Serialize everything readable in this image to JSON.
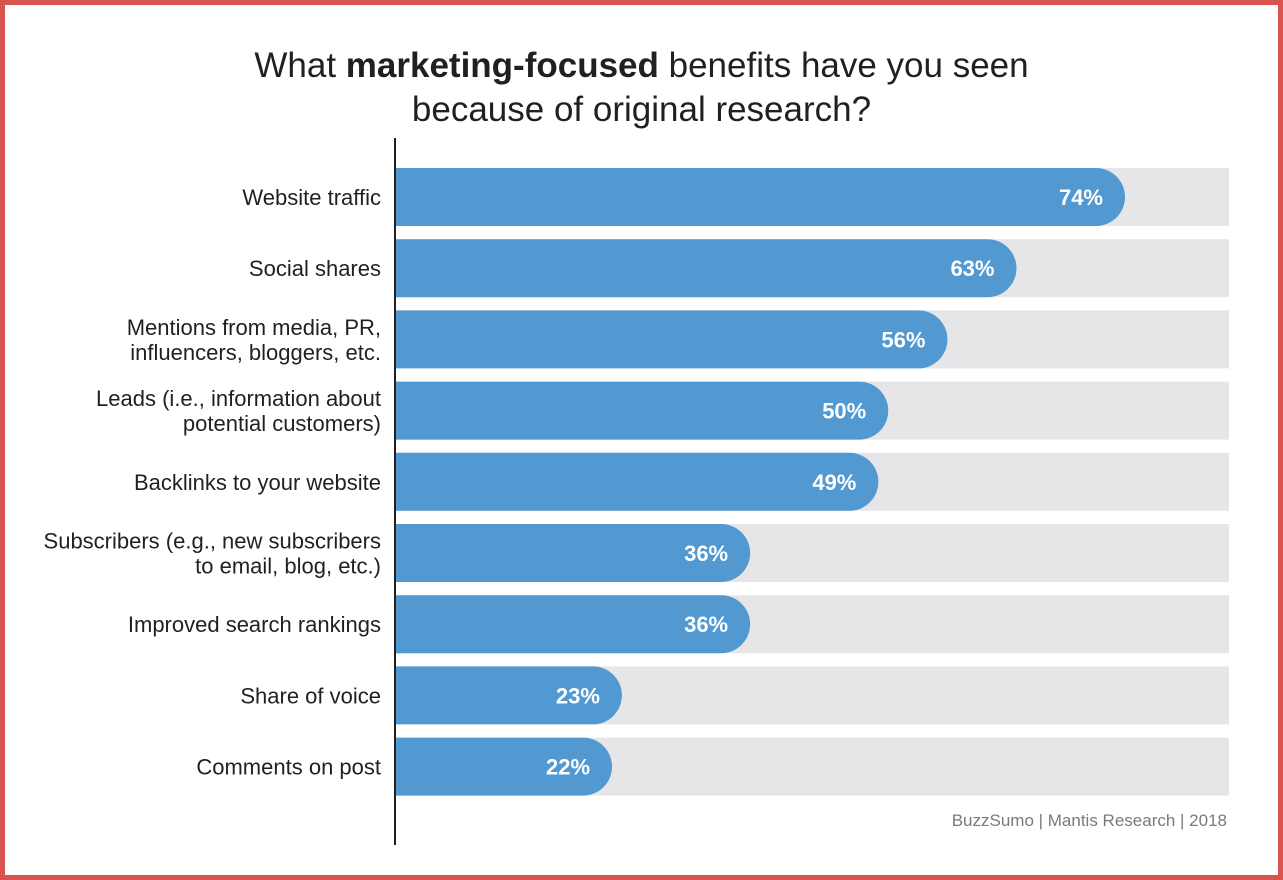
{
  "title": {
    "prefix": "What ",
    "bold": "marketing-focused",
    "suffix": " benefits have you seen",
    "line2": "because of original research?"
  },
  "source": "BuzzSumo | Mantis Research | 2018",
  "colors": {
    "bar": "#5299d1",
    "track": "#e6e6e8",
    "axis": "#231f20",
    "label": "#231f20",
    "value": "#ffffff",
    "frame": "#d9534f"
  },
  "chart_data": {
    "type": "bar",
    "orientation": "horizontal",
    "title": "What marketing-focused benefits have you seen because of original research?",
    "xlim": [
      0,
      100
    ],
    "unit": "%",
    "categories": [
      [
        "Website traffic"
      ],
      [
        "Social shares"
      ],
      [
        "Mentions from media, PR,",
        "influencers, bloggers, etc."
      ],
      [
        "Leads (i.e., information about",
        "potential customers)"
      ],
      [
        "Backlinks to your website"
      ],
      [
        "Subscribers (e.g., new subscribers",
        "to email, blog, etc.)"
      ],
      [
        "Improved search rankings"
      ],
      [
        "Share of voice"
      ],
      [
        "Comments on post"
      ]
    ],
    "values": [
      74,
      63,
      56,
      50,
      49,
      36,
      36,
      23,
      22
    ],
    "value_labels": [
      "74%",
      "63%",
      "56%",
      "50%",
      "49%",
      "36%",
      "36%",
      "23%",
      "22%"
    ]
  }
}
